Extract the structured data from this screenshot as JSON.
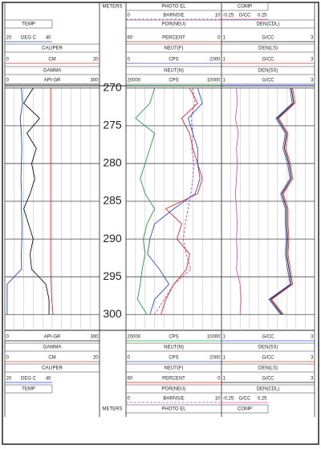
{
  "chart_data": {
    "type": "well_log",
    "depth_label": "METERS",
    "ylim": [
      269.7,
      302.1
    ],
    "yticks": [
      270,
      275,
      280,
      285,
      290,
      295,
      300
    ],
    "grid": true,
    "depth": [
      270,
      272,
      274,
      276,
      278,
      280,
      282,
      284,
      286,
      288,
      290,
      292,
      294,
      296,
      298,
      300
    ],
    "tracks": [
      {
        "curves": [
          {
            "name": "TEMP",
            "unit": "DEG C",
            "xlim": [
              20,
              40
            ],
            "color": "#2848c8",
            "values": [
              27,
              27.5,
              26.5,
              27,
              27.2,
              27,
              26.8,
              27.1,
              27,
              27.3,
              27.2,
              27,
              27.1,
              21,
              21,
              21
            ]
          },
          {
            "name": "CALIPER",
            "unit": "CM",
            "xlim": [
              0,
              20
            ],
            "color": "#e03030",
            "values": [
              9.7,
              9.7,
              9.7,
              9.7,
              9.7,
              9.7,
              9.7,
              9.7,
              9.7,
              9.7,
              9.7,
              9.7,
              9.7,
              9.8,
              9.9,
              10.2
            ]
          },
          {
            "name": "GAMMA",
            "unit": "API-GR",
            "xlim": [
              0,
              300
            ],
            "color": "#111111",
            "values": [
              90,
              60,
              110,
              70,
              100,
              85,
              95,
              80,
              60,
              75,
              90,
              80,
              85,
              130,
              140,
              140
            ]
          }
        ]
      },
      {
        "curves": [
          {
            "name": "PHOTO EL",
            "unit": "BARNS/E",
            "xlim": [
              0,
              10
            ],
            "color": "#c040c0",
            "dash": true,
            "values": [
              7,
              7.2,
              6.8,
              7,
              6.9,
              7.1,
              7,
              6.8,
              6.5,
              6.2,
              6,
              6.3,
              6.8,
              5,
              4,
              3
            ]
          },
          {
            "name": "POR(NEU)",
            "unit": "PERCENT",
            "xlim": [
              60,
              0
            ],
            "color": "#e02828",
            "values": [
              20,
              15,
              25,
              20,
              18,
              15,
              12,
              15,
              35,
              25,
              28,
              20,
              22,
              30,
              35,
              38
            ]
          },
          {
            "name": "NEUT(F)",
            "unit": "CPS",
            "xlim": [
              0,
              2000
            ],
            "color": "#3050d0",
            "values": [
              1500,
              1600,
              1300,
              1400,
              1500,
              1500,
              1550,
              1450,
              1000,
              600,
              500,
              450,
              700,
              900,
              600,
              500
            ]
          },
          {
            "name": "NEUT(N)",
            "unit": "CPS",
            "xlim": [
              20000,
              10000
            ],
            "color": "#20a040",
            "values": [
              17000,
              17500,
              19000,
              17000,
              17500,
              18000,
              18500,
              18000,
              17000,
              17800,
              18200,
              18000,
              18300,
              18500,
              18800,
              17800
            ]
          }
        ]
      },
      {
        "curves": [
          {
            "name": "COMP",
            "unit": "G/CC",
            "xlim": [
              -0.25,
              0.25
            ],
            "color": "#e050c0",
            "values": [
              -0.09,
              -0.08,
              -0.1,
              -0.07,
              -0.09,
              -0.08,
              -0.09,
              -0.1,
              -0.09,
              -0.08,
              -0.09,
              -0.08,
              -0.09,
              -0.05,
              -0.04,
              -0.05
            ]
          },
          {
            "name": "DEN(CDL)",
            "unit": "G/CC",
            "xlim": [
              1,
              3
            ],
            "color": "#111111",
            "values": [
              2.5,
              2.55,
              2.2,
              2.4,
              2.35,
              2.45,
              2.5,
              2.3,
              2.4,
              2.4,
              2.42,
              2.4,
              2.45,
              2.5,
              2.05,
              2.3
            ]
          },
          {
            "name": "DEN(LS)",
            "unit": "G/CC",
            "xlim": [
              1,
              3
            ],
            "color": "#e03030",
            "values": [
              2.53,
              2.58,
              2.23,
              2.43,
              2.38,
              2.48,
              2.53,
              2.33,
              2.43,
              2.43,
              2.45,
              2.43,
              2.48,
              2.53,
              2.08,
              2.33
            ]
          },
          {
            "name": "DEN(SS)",
            "unit": "G/CC",
            "xlim": [
              1,
              3
            ],
            "color": "#3050d0",
            "values": [
              2.47,
              2.52,
              2.17,
              2.37,
              2.32,
              2.42,
              2.47,
              2.27,
              2.37,
              2.37,
              2.39,
              2.37,
              2.42,
              2.47,
              2.02,
              2.27
            ]
          }
        ]
      }
    ]
  }
}
